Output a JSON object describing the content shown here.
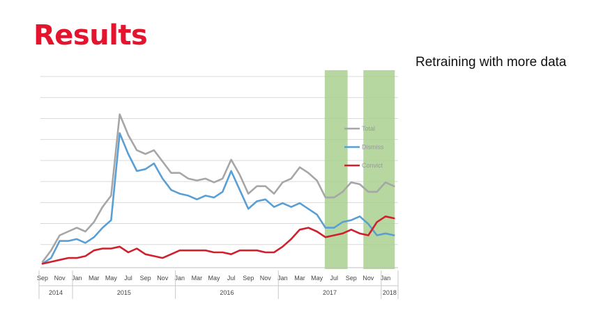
{
  "slide": {
    "title": "Results",
    "annotation": "Retraining with more data"
  },
  "colors": {
    "title": "#e3142d",
    "total": "#a6a6a6",
    "dismiss": "#5a9fd4",
    "convict": "#d0202e",
    "highlight": "#a9d08e",
    "grid": "#d9d9d9"
  },
  "chart_data": {
    "type": "line",
    "xlabel": "",
    "ylabel": "",
    "ylim": [
      0,
      10
    ],
    "grid": true,
    "legend": "right",
    "x_tick_labels": [
      "Sep",
      "Nov",
      "Jan",
      "Mar",
      "May",
      "Jul",
      "Sep",
      "Nov",
      "Jan",
      "Mar",
      "May",
      "Jul",
      "Sep",
      "Nov",
      "Jan",
      "Mar",
      "May",
      "Jul",
      "Sep",
      "Nov",
      "Jan"
    ],
    "year_labels": [
      {
        "label": "2014",
        "start_month": 0,
        "end_month": 4
      },
      {
        "label": "2015",
        "start_month": 4,
        "end_month": 16
      },
      {
        "label": "2016",
        "start_month": 16,
        "end_month": 28
      },
      {
        "label": "2017",
        "start_month": 28,
        "end_month": 40
      },
      {
        "label": "2018",
        "start_month": 40,
        "end_month": 42
      }
    ],
    "highlights": [
      {
        "start_month": 33,
        "end_month": 35.5
      },
      {
        "start_month": 37.5,
        "end_month": 41
      }
    ],
    "series": [
      {
        "name": "Total",
        "color_key": "total",
        "values": [
          0.2,
          0.8,
          1.6,
          1.8,
          2.0,
          1.8,
          2.3,
          3.1,
          3.7,
          8.0,
          6.9,
          6.1,
          5.9,
          6.1,
          5.5,
          4.9,
          4.9,
          4.6,
          4.5,
          4.6,
          4.4,
          4.6,
          5.6,
          4.8,
          3.8,
          4.2,
          4.2,
          3.8,
          4.4,
          4.6,
          5.2,
          4.9,
          4.5,
          3.6,
          3.6,
          3.9,
          4.4,
          4.3,
          3.9,
          3.9,
          4.4,
          4.2
        ]
      },
      {
        "name": "Dismiss",
        "color_key": "dismiss",
        "values": [
          0.1,
          0.4,
          1.3,
          1.3,
          1.4,
          1.2,
          1.5,
          2.0,
          2.4,
          7.0,
          5.9,
          5.0,
          5.1,
          5.4,
          4.6,
          4.0,
          3.8,
          3.7,
          3.5,
          3.7,
          3.6,
          3.9,
          5.0,
          4.0,
          3.0,
          3.4,
          3.5,
          3.1,
          3.3,
          3.1,
          3.3,
          3.0,
          2.7,
          2.0,
          2.0,
          2.3,
          2.4,
          2.6,
          2.2,
          1.6,
          1.7,
          1.6
        ]
      },
      {
        "name": "Convict",
        "color_key": "convict",
        "values": [
          0.1,
          0.2,
          0.3,
          0.4,
          0.4,
          0.5,
          0.8,
          0.9,
          0.9,
          1.0,
          0.7,
          0.9,
          0.6,
          0.5,
          0.4,
          0.6,
          0.8,
          0.8,
          0.8,
          0.8,
          0.7,
          0.7,
          0.6,
          0.8,
          0.8,
          0.8,
          0.7,
          0.7,
          1.0,
          1.4,
          1.9,
          2.0,
          1.8,
          1.5,
          1.6,
          1.7,
          1.9,
          1.7,
          1.6,
          2.3,
          2.6,
          2.5
        ]
      }
    ]
  }
}
